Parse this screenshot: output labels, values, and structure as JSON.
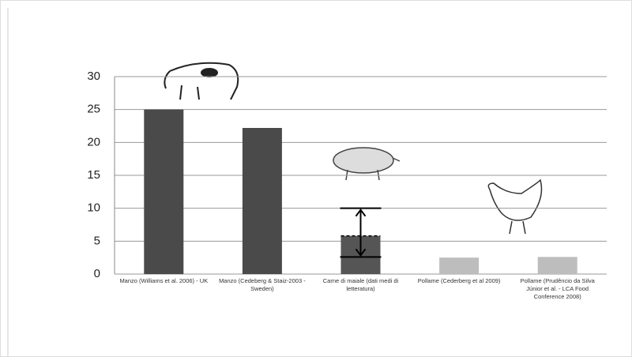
{
  "chart_data": {
    "type": "bar",
    "categories": [
      "Manzo (Williams et al. 2006) - UK",
      "Manzo (Cedeberg & Staiz-2003 - Sweden)",
      "Carne di maiale (dati medi di letteratura)",
      "Pollame (Cederberg et al 2009)",
      "Pollame (Prudêncio da Silva Júnior et al. - LCA Food Conference 2008)"
    ],
    "values": [
      25,
      22.2,
      5.8,
      2.5,
      2.6
    ],
    "colors": [
      "#4a4a4a",
      "#4a4a4a",
      "#555555",
      "#bdbdbd",
      "#bdbdbd"
    ],
    "error_bar": {
      "index": 2,
      "low": 2.6,
      "high": 10
    },
    "ylim": [
      0,
      30
    ],
    "yticks": [
      0,
      5,
      10,
      15,
      20,
      25,
      30
    ],
    "grid": true
  }
}
